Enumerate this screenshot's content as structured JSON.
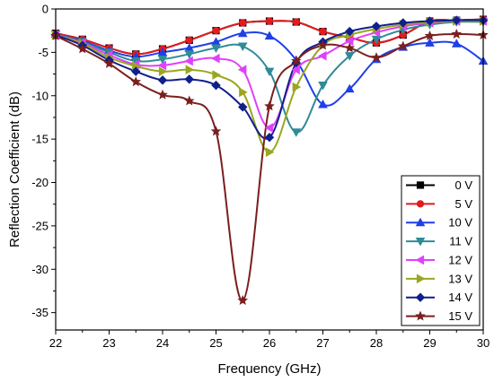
{
  "chart_data": {
    "type": "line",
    "title": "",
    "xlabel": "Frequency (GHz)",
    "ylabel": "Reflection Coefficient (dB)",
    "xlim": [
      22,
      30
    ],
    "ylim": [
      -37,
      0
    ],
    "xticks": [
      "22",
      "23",
      "24",
      "25",
      "26",
      "27",
      "28",
      "29",
      "30"
    ],
    "yticks": [
      "0",
      "-5",
      "-10",
      "-15",
      "-20",
      "-25",
      "-30",
      "-35"
    ],
    "grid": false,
    "legend_position": "bottom-right",
    "series": [
      {
        "name": "0 V",
        "color": "#000000",
        "marker": "square",
        "x": [
          22,
          22.5,
          23,
          23.5,
          24,
          24.5,
          25,
          25.5,
          26,
          26.5,
          27,
          27.5,
          28,
          28.5,
          29,
          29.5,
          30
        ],
        "y": [
          -2.8,
          -3.5,
          -4.5,
          -5.2,
          -4.6,
          -3.6,
          -2.5,
          -1.6,
          -1.4,
          -1.5,
          -2.6,
          -3.3,
          -3.9,
          -3.0,
          -1.4,
          -1.3,
          -1.2
        ]
      },
      {
        "name": "5 V",
        "color": "#e41a1c",
        "marker": "circle",
        "x": [
          22,
          22.5,
          23,
          23.5,
          24,
          24.5,
          25,
          25.5,
          26,
          26.5,
          27,
          27.5,
          28,
          28.5,
          29,
          29.5,
          30
        ],
        "y": [
          -2.8,
          -3.5,
          -4.5,
          -5.2,
          -4.6,
          -3.6,
          -2.5,
          -1.6,
          -1.4,
          -1.5,
          -2.6,
          -3.3,
          -3.9,
          -3.0,
          -1.4,
          -1.3,
          -1.2
        ]
      },
      {
        "name": "10 V",
        "color": "#1f3fe8",
        "marker": "triangle-up",
        "x": [
          22,
          22.5,
          23,
          23.5,
          24,
          24.5,
          25,
          25.5,
          26,
          26.5,
          27,
          27.5,
          28,
          28.5,
          29,
          29.5,
          30
        ],
        "y": [
          -2.9,
          -3.7,
          -4.8,
          -5.5,
          -5.0,
          -4.5,
          -3.8,
          -2.8,
          -3.1,
          -5.9,
          -11.0,
          -9.2,
          -5.8,
          -4.4,
          -3.9,
          -4.0,
          -6.0
        ]
      },
      {
        "name": "11 V",
        "color": "#2e8b97",
        "marker": "triangle-down",
        "x": [
          22,
          22.5,
          23,
          23.5,
          24,
          24.5,
          25,
          25.5,
          26,
          26.5,
          27,
          27.5,
          28,
          28.5,
          29,
          29.5,
          30
        ],
        "y": [
          -2.9,
          -3.8,
          -5.0,
          -6.0,
          -5.8,
          -5.2,
          -4.5,
          -4.3,
          -7.2,
          -14.2,
          -8.8,
          -5.4,
          -3.5,
          -2.4,
          -1.8,
          -1.5,
          -1.5
        ]
      },
      {
        "name": "12 V",
        "color": "#e040fb",
        "marker": "triangle-left",
        "x": [
          22,
          22.5,
          23,
          23.5,
          24,
          24.5,
          25,
          25.5,
          26,
          26.5,
          27,
          27.5,
          28,
          28.5,
          29,
          29.5,
          30
        ],
        "y": [
          -3.0,
          -3.9,
          -5.3,
          -6.4,
          -6.5,
          -6.0,
          -5.7,
          -7.0,
          -13.7,
          -7.0,
          -5.4,
          -3.7,
          -2.7,
          -2.0,
          -1.6,
          -1.4,
          -1.4
        ]
      },
      {
        "name": "13 V",
        "color": "#9aa620",
        "marker": "triangle-right",
        "x": [
          22,
          22.5,
          23,
          23.5,
          24,
          24.5,
          25,
          25.5,
          26,
          26.5,
          27,
          27.5,
          28,
          28.5,
          29,
          29.5,
          30
        ],
        "y": [
          -3.0,
          -4.0,
          -5.6,
          -6.6,
          -7.2,
          -7.0,
          -7.6,
          -9.6,
          -16.5,
          -9.0,
          -4.2,
          -3.0,
          -2.3,
          -1.8,
          -1.5,
          -1.4,
          -1.4
        ]
      },
      {
        "name": "14 V",
        "color": "#101f8c",
        "marker": "diamond",
        "x": [
          22,
          22.5,
          23,
          23.5,
          24,
          24.5,
          25,
          25.5,
          26,
          26.5,
          27,
          27.5,
          28,
          28.5,
          29,
          29.5,
          30
        ],
        "y": [
          -3.0,
          -4.2,
          -5.9,
          -7.2,
          -8.2,
          -8.1,
          -8.8,
          -11.3,
          -14.8,
          -6.2,
          -3.8,
          -2.6,
          -2.0,
          -1.6,
          -1.4,
          -1.3,
          -1.3
        ]
      },
      {
        "name": "15 V",
        "color": "#7a1f1f",
        "marker": "star",
        "x": [
          22,
          22.5,
          23,
          23.5,
          24,
          24.5,
          25,
          25.5,
          26,
          26.5,
          27,
          27.5,
          28,
          28.5,
          29,
          29.5,
          30
        ],
        "y": [
          -3.1,
          -4.6,
          -6.3,
          -8.4,
          -9.9,
          -10.6,
          -14.1,
          -33.6,
          -11.2,
          -6.0,
          -4.2,
          -4.5,
          -5.6,
          -4.3,
          -3.1,
          -2.9,
          -3.0
        ]
      }
    ]
  }
}
